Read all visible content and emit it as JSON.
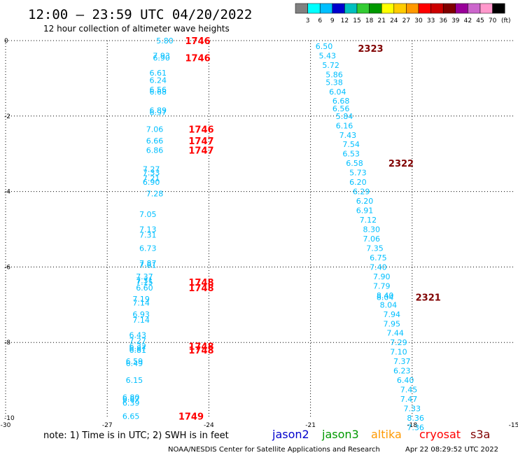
{
  "header": {
    "title": "12:00 – 23:59 UTC 04/20/2022",
    "subtitle": "12 hour collection of altimeter wave heights"
  },
  "colorbar": {
    "labels": [
      "3",
      "6",
      "9",
      "12",
      "15",
      "18",
      "21",
      "24",
      "27",
      "30",
      "33",
      "36",
      "39",
      "42",
      "45",
      "70"
    ],
    "unit": "(ft)",
    "colors": [
      "#808080",
      "#00ffff",
      "#00bfff",
      "#0000cd",
      "#00bfbf",
      "#33cc33",
      "#009900",
      "#ffff00",
      "#ffcc00",
      "#ff9900",
      "#ff0000",
      "#cc0000",
      "#800000",
      "#990099",
      "#cc66cc",
      "#ff99cc",
      "#000000"
    ]
  },
  "footer": {
    "note": "note:  1) Time is in UTC;  2) SWH is in feet",
    "satellites": [
      {
        "name": "jason2",
        "color": "#0000cc"
      },
      {
        "name": "jason3",
        "color": "#009900"
      },
      {
        "name": "altika",
        "color": "#ff9900"
      },
      {
        "name": "cryosat",
        "color": "#ff0000"
      },
      {
        "name": "s3a",
        "color": "#800000"
      }
    ],
    "credit": "NOAA/NESDIS Center for Satellite Applications and Research",
    "timestamp": "Apr 22 08:29:52 UTC 2022"
  },
  "chart_data": {
    "type": "scatter",
    "xlim": [
      -30,
      -15
    ],
    "ylim": [
      -10,
      0
    ],
    "xticks": [
      -30,
      -27,
      -24,
      -21,
      -18,
      -15
    ],
    "yticks": [
      0,
      -2,
      -4,
      -6,
      -8,
      -10
    ],
    "grid": true,
    "value_color": "#00bfff",
    "series": [
      {
        "name": "track west",
        "points": [
          [
            -25.3,
            0.0,
            "5.80"
          ],
          [
            -25.4,
            -0.4,
            "7.93"
          ],
          [
            -25.4,
            -0.45,
            "6.90"
          ],
          [
            -25.5,
            -0.85,
            "6.61"
          ],
          [
            -25.5,
            -1.05,
            "6.24"
          ],
          [
            -25.5,
            -1.3,
            "6.56"
          ],
          [
            -25.5,
            -1.35,
            "6.68"
          ],
          [
            -25.5,
            -1.85,
            "6.89"
          ],
          [
            -25.5,
            -1.9,
            "6.97"
          ],
          [
            -25.6,
            -2.35,
            "7.06"
          ],
          [
            -25.6,
            -2.65,
            "6.66"
          ],
          [
            -25.6,
            -2.9,
            "6.86"
          ],
          [
            -25.7,
            -3.4,
            "7.27"
          ],
          [
            -25.7,
            -3.5,
            "7.33"
          ],
          [
            -25.7,
            -3.65,
            "7.21"
          ],
          [
            -25.7,
            -3.75,
            "6.90"
          ],
          [
            -25.6,
            -4.05,
            "7.28"
          ],
          [
            -25.8,
            -4.6,
            "7.05"
          ],
          [
            -25.8,
            -5.0,
            "7.13"
          ],
          [
            -25.8,
            -5.15,
            "7.31"
          ],
          [
            -25.8,
            -5.5,
            "6.73"
          ],
          [
            -25.8,
            -5.9,
            "7.87"
          ],
          [
            -25.8,
            -5.95,
            "7.81"
          ],
          [
            -25.9,
            -6.25,
            "7.37"
          ],
          [
            -25.9,
            -6.35,
            "7.31"
          ],
          [
            -25.9,
            -6.4,
            "7.15"
          ],
          [
            -25.9,
            -6.55,
            "6.60"
          ],
          [
            -26.0,
            -6.85,
            "7.19"
          ],
          [
            -26.0,
            -6.95,
            "7.14"
          ],
          [
            -26.0,
            -7.25,
            "6.93"
          ],
          [
            -26.0,
            -7.4,
            "7.14"
          ],
          [
            -26.1,
            -7.8,
            "6.43"
          ],
          [
            -26.1,
            -7.95,
            "7.27"
          ],
          [
            -26.1,
            -8.1,
            "6.32"
          ],
          [
            -26.1,
            -8.15,
            "6.87"
          ],
          [
            -26.1,
            -8.2,
            "6.81"
          ],
          [
            -26.2,
            -8.5,
            "6.59"
          ],
          [
            -26.2,
            -8.55,
            "6.49"
          ],
          [
            -26.2,
            -9.0,
            "6.15"
          ],
          [
            -26.3,
            -9.45,
            "6.80"
          ],
          [
            -26.3,
            -9.5,
            "6.87"
          ],
          [
            -26.3,
            -9.6,
            "6.39"
          ],
          [
            -26.3,
            -9.95,
            "6.65"
          ]
        ]
      },
      {
        "name": "track east",
        "points": [
          [
            -20.6,
            -0.15,
            "6.50"
          ],
          [
            -20.5,
            -0.4,
            "5.43"
          ],
          [
            -20.4,
            -0.65,
            "5.72"
          ],
          [
            -20.3,
            -0.9,
            "5.86"
          ],
          [
            -20.3,
            -1.1,
            "5.38"
          ],
          [
            -20.2,
            -1.35,
            "6.04"
          ],
          [
            -20.1,
            -1.6,
            "6.68"
          ],
          [
            -20.1,
            -1.8,
            "6.56"
          ],
          [
            -20.0,
            -2.0,
            "5.84"
          ],
          [
            -20.0,
            -2.25,
            "6.16"
          ],
          [
            -19.9,
            -2.5,
            "7.43"
          ],
          [
            -19.8,
            -2.75,
            "7.54"
          ],
          [
            -19.8,
            -3.0,
            "6.53"
          ],
          [
            -19.7,
            -3.25,
            "6.58"
          ],
          [
            -19.6,
            -3.5,
            "5.73"
          ],
          [
            -19.6,
            -3.75,
            "6.20"
          ],
          [
            -19.5,
            -4.0,
            "6.29"
          ],
          [
            -19.4,
            -4.25,
            "6.20"
          ],
          [
            -19.4,
            -4.5,
            "6.91"
          ],
          [
            -19.3,
            -4.75,
            "7.12"
          ],
          [
            -19.2,
            -5.0,
            "8.30"
          ],
          [
            -19.2,
            -5.25,
            "7.06"
          ],
          [
            -19.1,
            -5.5,
            "7.35"
          ],
          [
            -19.0,
            -5.75,
            "6.75"
          ],
          [
            -19.0,
            -6.0,
            "7.40"
          ],
          [
            -18.9,
            -6.25,
            "7.90"
          ],
          [
            -18.9,
            -6.5,
            "7.79"
          ],
          [
            -18.8,
            -6.75,
            "8.40"
          ],
          [
            -18.8,
            -6.8,
            "8.04"
          ],
          [
            -18.7,
            -7.0,
            "8.04"
          ],
          [
            -18.6,
            -7.25,
            "7.94"
          ],
          [
            -18.6,
            -7.5,
            "7.95"
          ],
          [
            -18.5,
            -7.75,
            "7.44"
          ],
          [
            -18.4,
            -8.0,
            "7.29"
          ],
          [
            -18.4,
            -8.25,
            "7.10"
          ],
          [
            -18.3,
            -8.5,
            "7.37"
          ],
          [
            -18.3,
            -8.75,
            "6.23"
          ],
          [
            -18.2,
            -9.0,
            "6.40"
          ],
          [
            -18.1,
            -9.25,
            "7.45"
          ],
          [
            -18.1,
            -9.5,
            "7.47"
          ],
          [
            -18.0,
            -9.75,
            "7.33"
          ],
          [
            -17.9,
            -10.0,
            "8.36"
          ],
          [
            -17.9,
            -10.25,
            "7.36"
          ]
        ]
      }
    ],
    "time_labels": [
      {
        "x": -24.7,
        "y": 0.0,
        "text": "1746",
        "color": "#ff0000"
      },
      {
        "x": -24.7,
        "y": -0.45,
        "text": "1746",
        "color": "#ff0000"
      },
      {
        "x": -24.6,
        "y": -2.35,
        "text": "1746",
        "color": "#ff0000"
      },
      {
        "x": -24.6,
        "y": -2.65,
        "text": "1747",
        "color": "#ff0000"
      },
      {
        "x": -24.6,
        "y": -2.9,
        "text": "1747",
        "color": "#ff0000"
      },
      {
        "x": -24.6,
        "y": -6.4,
        "text": "1748",
        "color": "#ff0000"
      },
      {
        "x": -24.6,
        "y": -6.55,
        "text": "1748",
        "color": "#ff0000"
      },
      {
        "x": -24.6,
        "y": -8.1,
        "text": "1748",
        "color": "#ff0000"
      },
      {
        "x": -24.6,
        "y": -8.2,
        "text": "1748",
        "color": "#ff0000"
      },
      {
        "x": -24.9,
        "y": -9.95,
        "text": "1749",
        "color": "#ff0000"
      },
      {
        "x": -19.6,
        "y": -0.2,
        "text": "2323",
        "color": "#800000"
      },
      {
        "x": -18.7,
        "y": -3.25,
        "text": "2322",
        "color": "#800000"
      },
      {
        "x": -17.9,
        "y": -6.8,
        "text": "2321",
        "color": "#800000"
      }
    ]
  }
}
